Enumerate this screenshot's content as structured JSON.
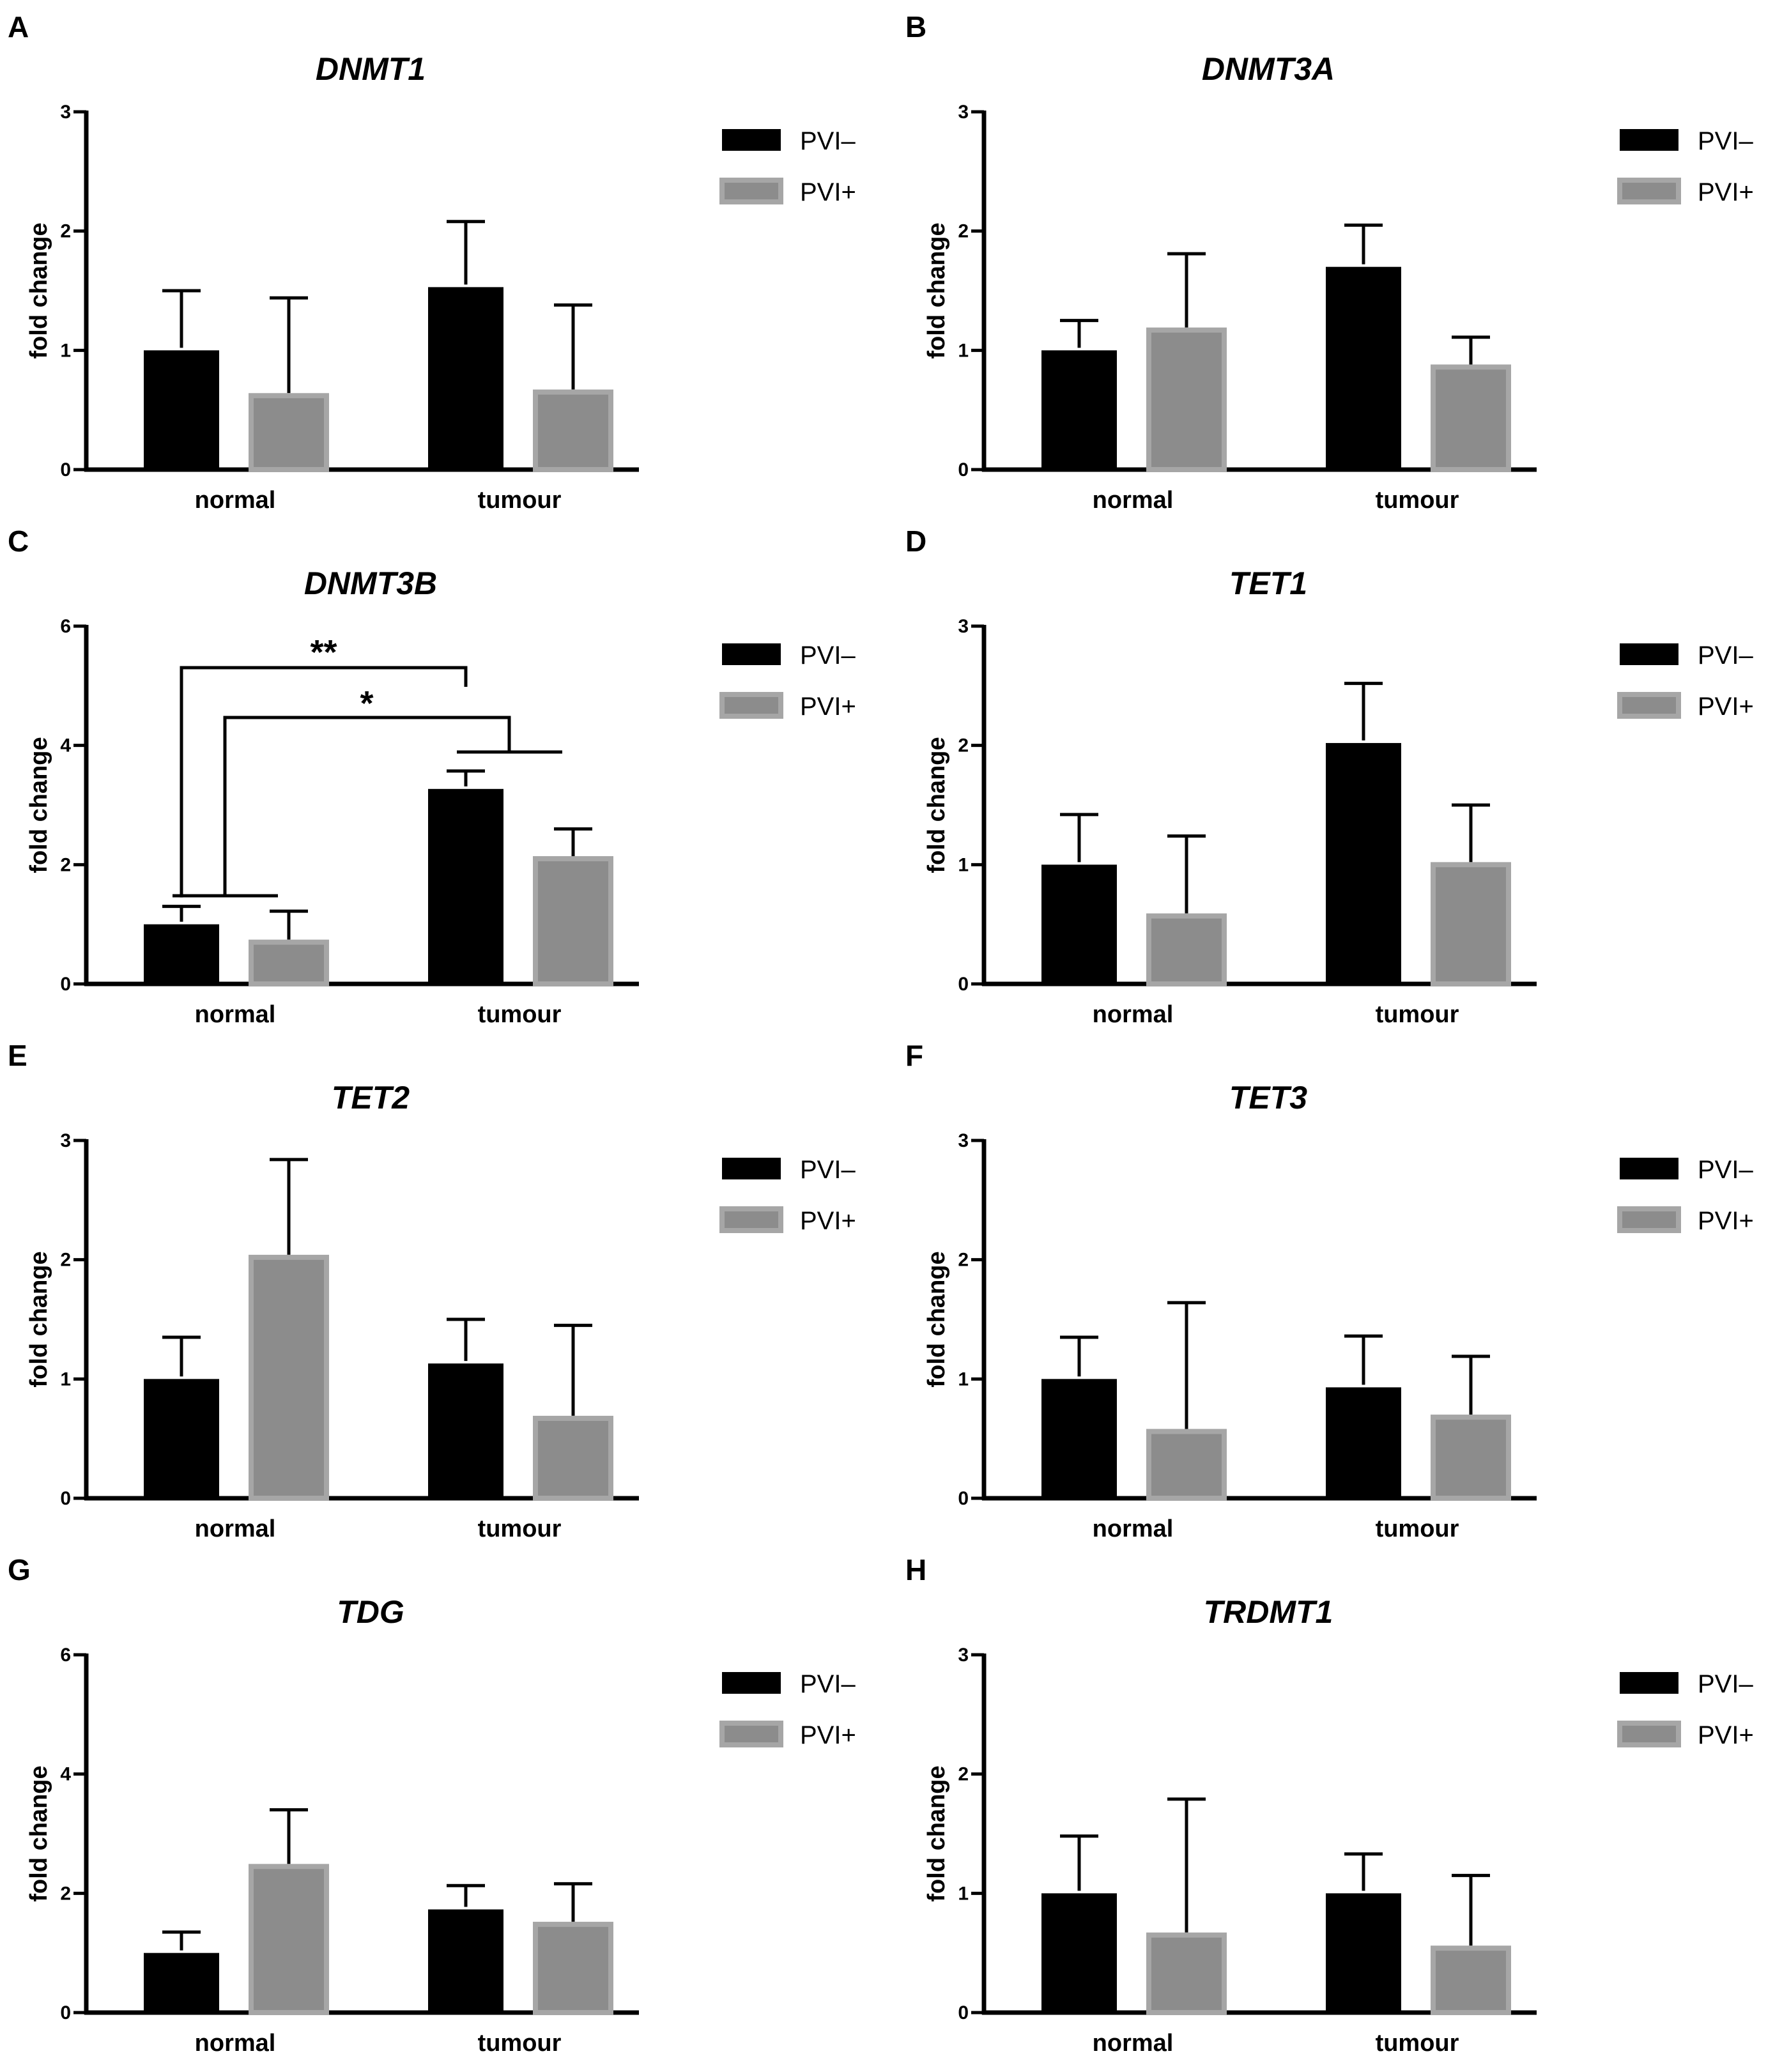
{
  "colors": {
    "pvi_neg": "#000000",
    "pvi_pos": "#8c8c8c",
    "axis": "#000000"
  },
  "chart_data": [
    {
      "panel": "A",
      "type": "bar",
      "title": "DNMT1",
      "ylabel": "fold change",
      "ylim": [
        0,
        3
      ],
      "yticks": [
        0,
        1,
        2,
        3
      ],
      "categories": [
        "normal",
        "tumour"
      ],
      "series": [
        {
          "name": "PVI–",
          "values": [
            1.0,
            1.53
          ],
          "errors": [
            0.5,
            0.55
          ]
        },
        {
          "name": "PVI+",
          "values": [
            0.62,
            0.65
          ],
          "errors": [
            0.82,
            0.73
          ]
        }
      ],
      "legend": "top-right"
    },
    {
      "panel": "B",
      "type": "bar",
      "title": "DNMT3A",
      "ylabel": "fold change",
      "ylim": [
        0,
        3
      ],
      "yticks": [
        0,
        1,
        2,
        3
      ],
      "categories": [
        "normal",
        "tumour"
      ],
      "series": [
        {
          "name": "PVI–",
          "values": [
            1.0,
            1.7
          ],
          "errors": [
            0.25,
            0.35
          ]
        },
        {
          "name": "PVI+",
          "values": [
            1.17,
            0.86
          ],
          "errors": [
            0.64,
            0.25
          ]
        }
      ],
      "legend": "top-right"
    },
    {
      "panel": "C",
      "type": "bar",
      "title": "DNMT3B",
      "ylabel": "fold change",
      "ylim": [
        0,
        6
      ],
      "yticks": [
        0,
        2,
        4,
        6
      ],
      "categories": [
        "normal",
        "tumour"
      ],
      "series": [
        {
          "name": "PVI–",
          "values": [
            1.0,
            3.27
          ],
          "errors": [
            0.3,
            0.3
          ]
        },
        {
          "name": "PVI+",
          "values": [
            0.7,
            2.1
          ],
          "errors": [
            0.52,
            0.5
          ]
        }
      ],
      "annotations": [
        {
          "label": "**",
          "from": "normal PVI–",
          "to": "tumour PVI–"
        },
        {
          "label": "*",
          "from": "normal",
          "to": "tumour"
        }
      ],
      "legend": "top-right"
    },
    {
      "panel": "D",
      "type": "bar",
      "title": "TET1",
      "ylabel": "fold change",
      "ylim": [
        0,
        3
      ],
      "yticks": [
        0,
        1,
        2,
        3
      ],
      "categories": [
        "normal",
        "tumour"
      ],
      "series": [
        {
          "name": "PVI–",
          "values": [
            1.0,
            2.02
          ],
          "errors": [
            0.42,
            0.5
          ]
        },
        {
          "name": "PVI+",
          "values": [
            0.57,
            1.0
          ],
          "errors": [
            0.67,
            0.5
          ]
        }
      ],
      "legend": "top-right"
    },
    {
      "panel": "E",
      "type": "bar",
      "title": "TET2",
      "ylabel": "fold change",
      "ylim": [
        0,
        3
      ],
      "yticks": [
        0,
        1,
        2,
        3
      ],
      "categories": [
        "normal",
        "tumour"
      ],
      "series": [
        {
          "name": "PVI–",
          "values": [
            1.0,
            1.13
          ],
          "errors": [
            0.35,
            0.37
          ]
        },
        {
          "name": "PVI+",
          "values": [
            2.02,
            0.67
          ],
          "errors": [
            0.82,
            0.78
          ]
        }
      ],
      "legend": "top-right"
    },
    {
      "panel": "F",
      "type": "bar",
      "title": "TET3",
      "ylabel": "fold change",
      "ylim": [
        0,
        3
      ],
      "yticks": [
        0,
        1,
        2,
        3
      ],
      "categories": [
        "normal",
        "tumour"
      ],
      "series": [
        {
          "name": "PVI–",
          "values": [
            1.0,
            0.93
          ],
          "errors": [
            0.35,
            0.43
          ]
        },
        {
          "name": "PVI+",
          "values": [
            0.56,
            0.68
          ],
          "errors": [
            1.08,
            0.51
          ]
        }
      ],
      "legend": "top-right"
    },
    {
      "panel": "G",
      "type": "bar",
      "title": "TDG",
      "ylabel": "fold change",
      "ylim": [
        0,
        6
      ],
      "yticks": [
        0,
        2,
        4,
        6
      ],
      "categories": [
        "normal",
        "tumour"
      ],
      "series": [
        {
          "name": "PVI–",
          "values": [
            1.0,
            1.73
          ],
          "errors": [
            0.35,
            0.4
          ]
        },
        {
          "name": "PVI+",
          "values": [
            2.45,
            1.48
          ],
          "errors": [
            0.95,
            0.68
          ]
        }
      ],
      "legend": "top-right"
    },
    {
      "panel": "H",
      "type": "bar",
      "title": "TRDMT1",
      "ylabel": "fold change",
      "ylim": [
        0,
        3
      ],
      "yticks": [
        0,
        1,
        2,
        3
      ],
      "categories": [
        "normal",
        "tumour"
      ],
      "series": [
        {
          "name": "PVI–",
          "values": [
            1.0,
            1.0
          ],
          "errors": [
            0.48,
            0.33
          ]
        },
        {
          "name": "PVI+",
          "values": [
            0.65,
            0.54
          ],
          "errors": [
            1.14,
            0.61
          ]
        }
      ],
      "legend": "top-right"
    }
  ]
}
